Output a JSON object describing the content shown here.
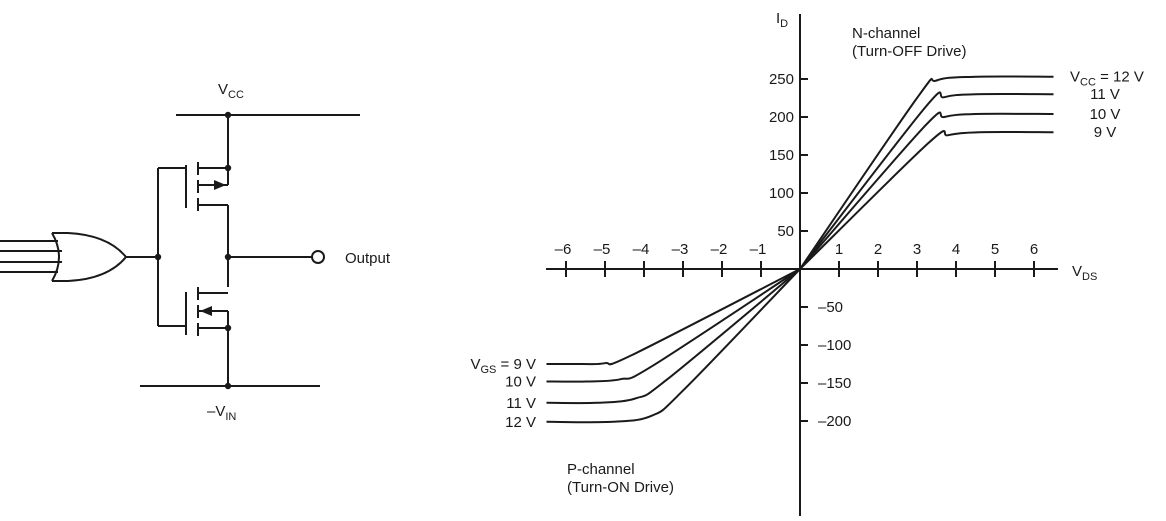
{
  "circuit": {
    "vcc_main": "V",
    "vcc_sub": "CC",
    "vin_main": "–V",
    "vin_sub": "IN",
    "output_label": "Output"
  },
  "chart_data": {
    "type": "line",
    "ylabel_main": "I",
    "ylabel_sub": "D",
    "xlabel_main": "V",
    "xlabel_sub": "DS",
    "xlim": [
      -6.5,
      6.5
    ],
    "ylim": [
      -235,
      270
    ],
    "x_ticks": [
      {
        "v": -6,
        "label": "–6"
      },
      {
        "v": -5,
        "label": "–5"
      },
      {
        "v": -4,
        "label": "–4"
      },
      {
        "v": -3,
        "label": "–3"
      },
      {
        "v": -2,
        "label": "–2"
      },
      {
        "v": -1,
        "label": "–1"
      },
      {
        "v": 1,
        "label": "1"
      },
      {
        "v": 2,
        "label": "2"
      },
      {
        "v": 3,
        "label": "3"
      },
      {
        "v": 4,
        "label": "4"
      },
      {
        "v": 5,
        "label": "5"
      },
      {
        "v": 6,
        "label": "6"
      }
    ],
    "y_ticks": [
      {
        "v": 250,
        "label": "250"
      },
      {
        "v": 200,
        "label": "200"
      },
      {
        "v": 150,
        "label": "150"
      },
      {
        "v": 100,
        "label": "100"
      },
      {
        "v": 50,
        "label": "50"
      },
      {
        "v": -50,
        "label": "–50"
      },
      {
        "v": -100,
        "label": "–100"
      },
      {
        "v": -150,
        "label": "–150"
      },
      {
        "v": -200,
        "label": "–200"
      }
    ],
    "n_channel": {
      "label_line1": "N-channel",
      "label_line2": "(Turn-OFF Drive)",
      "series": [
        {
          "name": "V",
          "name_sub": "CC",
          "name_suffix": " = 12 V",
          "values": [
            [
              0,
              0
            ],
            [
              3,
              225
            ],
            [
              3.5,
              248
            ],
            [
              4.5,
              253
            ],
            [
              6.5,
              253
            ]
          ]
        },
        {
          "name": "11 V",
          "values": [
            [
              0,
              0
            ],
            [
              3.2,
              212
            ],
            [
              3.7,
              226
            ],
            [
              4.5,
              230
            ],
            [
              6.5,
              230
            ]
          ]
        },
        {
          "name": "10 V",
          "values": [
            [
              0,
              0
            ],
            [
              3.2,
              188
            ],
            [
              3.7,
              200
            ],
            [
              4.5,
              204
            ],
            [
              6.5,
              204
            ]
          ]
        },
        {
          "name": "9 V",
          "values": [
            [
              0,
              0
            ],
            [
              3.3,
              166
            ],
            [
              3.8,
              176
            ],
            [
              4.6,
              180
            ],
            [
              6.5,
              180
            ]
          ]
        }
      ]
    },
    "p_channel": {
      "label_line1": "P-channel",
      "label_line2": "(Turn-ON Drive)",
      "series": [
        {
          "name": "V",
          "name_sub": "GS",
          "name_suffix": " = 9 V",
          "values": [
            [
              0,
              0
            ],
            [
              -4.3,
              -113
            ],
            [
              -5.0,
              -124
            ],
            [
              -5.6,
              -125
            ],
            [
              -6.5,
              -125
            ]
          ]
        },
        {
          "name": "10 V",
          "values": [
            [
              0,
              0
            ],
            [
              -3.8,
              -128
            ],
            [
              -4.6,
              -145
            ],
            [
              -5.5,
              -148
            ],
            [
              -6.5,
              -148
            ]
          ]
        },
        {
          "name": "11 V",
          "values": [
            [
              0,
              0
            ],
            [
              -3.4,
              -145
            ],
            [
              -4.2,
              -170
            ],
            [
              -5.2,
              -176
            ],
            [
              -6.5,
              -176
            ]
          ]
        },
        {
          "name": "12 V",
          "values": [
            [
              0,
              0
            ],
            [
              -3.0,
              -160
            ],
            [
              -3.8,
              -193
            ],
            [
              -4.8,
              -201
            ],
            [
              -6.5,
              -201
            ]
          ]
        }
      ]
    }
  }
}
